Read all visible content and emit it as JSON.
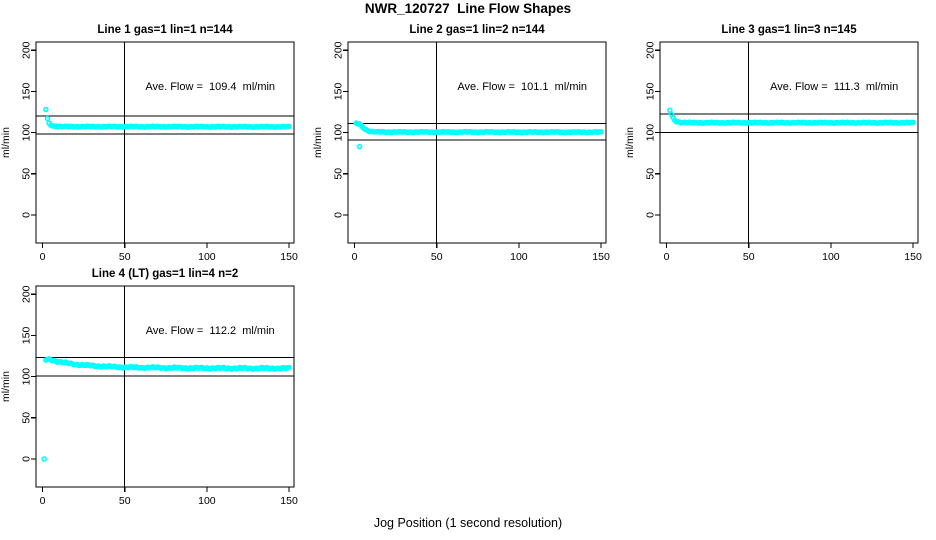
{
  "page": {
    "title": "NWR_120727  Line Flow Shapes"
  },
  "chart_data": {
    "type": "scatter",
    "title": "NWR_120727  Line Flow Shapes",
    "xlabel": "Jog Position (1 second resolution)",
    "ylabel": "ml/min",
    "point_color": "#00FFFF",
    "axis_color": "#000000",
    "background_color": "#ffffff",
    "x_ticks": [
      0,
      50,
      100,
      150
    ],
    "y_ticks": [
      0,
      50,
      100,
      150,
      200
    ],
    "xlim": [
      -4,
      153
    ],
    "ylim": [
      -34,
      210
    ],
    "grid": false,
    "legend": false,
    "vline_x": 50,
    "hline_factors": [
      1.1,
      0.9
    ],
    "annotation_pos": [
      102,
      152
    ],
    "panels": [
      {
        "title": "Line 1 gas=1 lin=1 n=144",
        "ave_flow": 109.4,
        "annotation": "Ave. Flow =  109.4  ml/min",
        "n": 144,
        "first_points": [
          [
            2,
            128
          ]
        ],
        "profile": [
          [
            3,
            117
          ],
          [
            4,
            111
          ],
          [
            5,
            109
          ],
          [
            7,
            108
          ],
          [
            12,
            107.3
          ],
          [
            150,
            107
          ]
        ],
        "outliers": [],
        "jitter": 0.6
      },
      {
        "title": "Line 2 gas=1 lin=2 n=144",
        "ave_flow": 101.1,
        "annotation": "Ave. Flow =  101.1  ml/min",
        "n": 144,
        "first_points": [],
        "profile": [
          [
            1,
            111
          ],
          [
            2,
            110.5
          ],
          [
            3,
            110.5
          ],
          [
            4,
            108.5
          ],
          [
            5,
            106.5
          ],
          [
            6,
            105
          ],
          [
            8,
            102.5
          ],
          [
            10,
            101.3
          ],
          [
            14,
            100.7
          ],
          [
            150,
            100.5
          ]
        ],
        "outliers": [
          [
            3,
            83
          ]
        ],
        "jitter": 0.6
      },
      {
        "title": "Line 3 gas=1 lin=3 n=145",
        "ave_flow": 111.3,
        "annotation": "Ave. Flow =  111.3  ml/min",
        "n": 145,
        "first_points": [
          [
            2,
            127
          ]
        ],
        "profile": [
          [
            3,
            122
          ],
          [
            4,
            118
          ],
          [
            5,
            115
          ],
          [
            6,
            113.5
          ],
          [
            9,
            112.3
          ],
          [
            15,
            112
          ],
          [
            150,
            112
          ]
        ],
        "outliers": [],
        "jitter": 0.6
      },
      {
        "title": "Line 4 (LT) gas=1 lin=4 n=2",
        "ave_flow": 112.2,
        "annotation": "Ave. Flow =  112.2  ml/min",
        "n": 2,
        "first_points": [],
        "profile": [
          [
            2,
            120
          ],
          [
            3,
            121
          ],
          [
            5,
            120.5
          ],
          [
            7,
            119.5
          ],
          [
            9,
            118.5
          ],
          [
            12,
            117.3
          ],
          [
            15,
            116.3
          ],
          [
            18,
            115.4
          ],
          [
            22,
            114.5
          ],
          [
            26,
            113.8
          ],
          [
            30,
            113.2
          ],
          [
            36,
            112.5
          ],
          [
            42,
            112
          ],
          [
            50,
            111.4
          ],
          [
            60,
            111
          ],
          [
            75,
            110.7
          ],
          [
            95,
            110.3
          ],
          [
            120,
            110.1
          ],
          [
            150,
            110
          ]
        ],
        "outliers": [
          [
            1,
            0
          ]
        ],
        "jitter": 1.1
      }
    ]
  }
}
